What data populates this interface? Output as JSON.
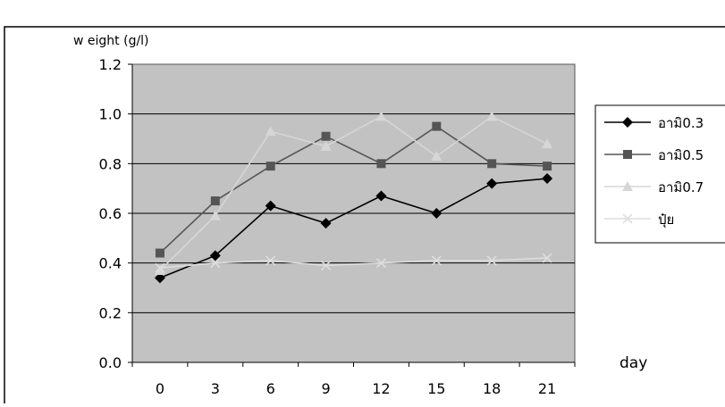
{
  "chart_data": {
    "type": "line",
    "title": "",
    "ylabel": "w eight (g/l)",
    "xlabel": "day",
    "categories": [
      "0",
      "3",
      "6",
      "9",
      "12",
      "15",
      "18",
      "21"
    ],
    "ylim": [
      0,
      1.2
    ],
    "yticks": [
      "0.0",
      "0.2",
      "0.4",
      "0.6",
      "0.8",
      "1.0",
      "1.2"
    ],
    "grid": true,
    "legend_position": "right",
    "series": [
      {
        "name": "อามิ0.3",
        "values": [
          0.34,
          0.43,
          0.63,
          0.56,
          0.67,
          0.6,
          0.72,
          0.74
        ],
        "color": "#000000",
        "marker": "diamond"
      },
      {
        "name": "อามิ0.5",
        "values": [
          0.44,
          0.65,
          0.79,
          0.91,
          0.8,
          0.95,
          0.8,
          0.79
        ],
        "color": "#555555",
        "marker": "square"
      },
      {
        "name": "อามิ0.7",
        "values": [
          0.37,
          0.59,
          0.93,
          0.87,
          0.99,
          0.83,
          0.99,
          0.88
        ],
        "color": "#d6d6d6",
        "marker": "triangle"
      },
      {
        "name": "ปุ๋ย",
        "values": [
          0.38,
          0.4,
          0.41,
          0.39,
          0.4,
          0.41,
          0.41,
          0.42
        ],
        "color": "#dedede",
        "marker": "x"
      }
    ]
  }
}
